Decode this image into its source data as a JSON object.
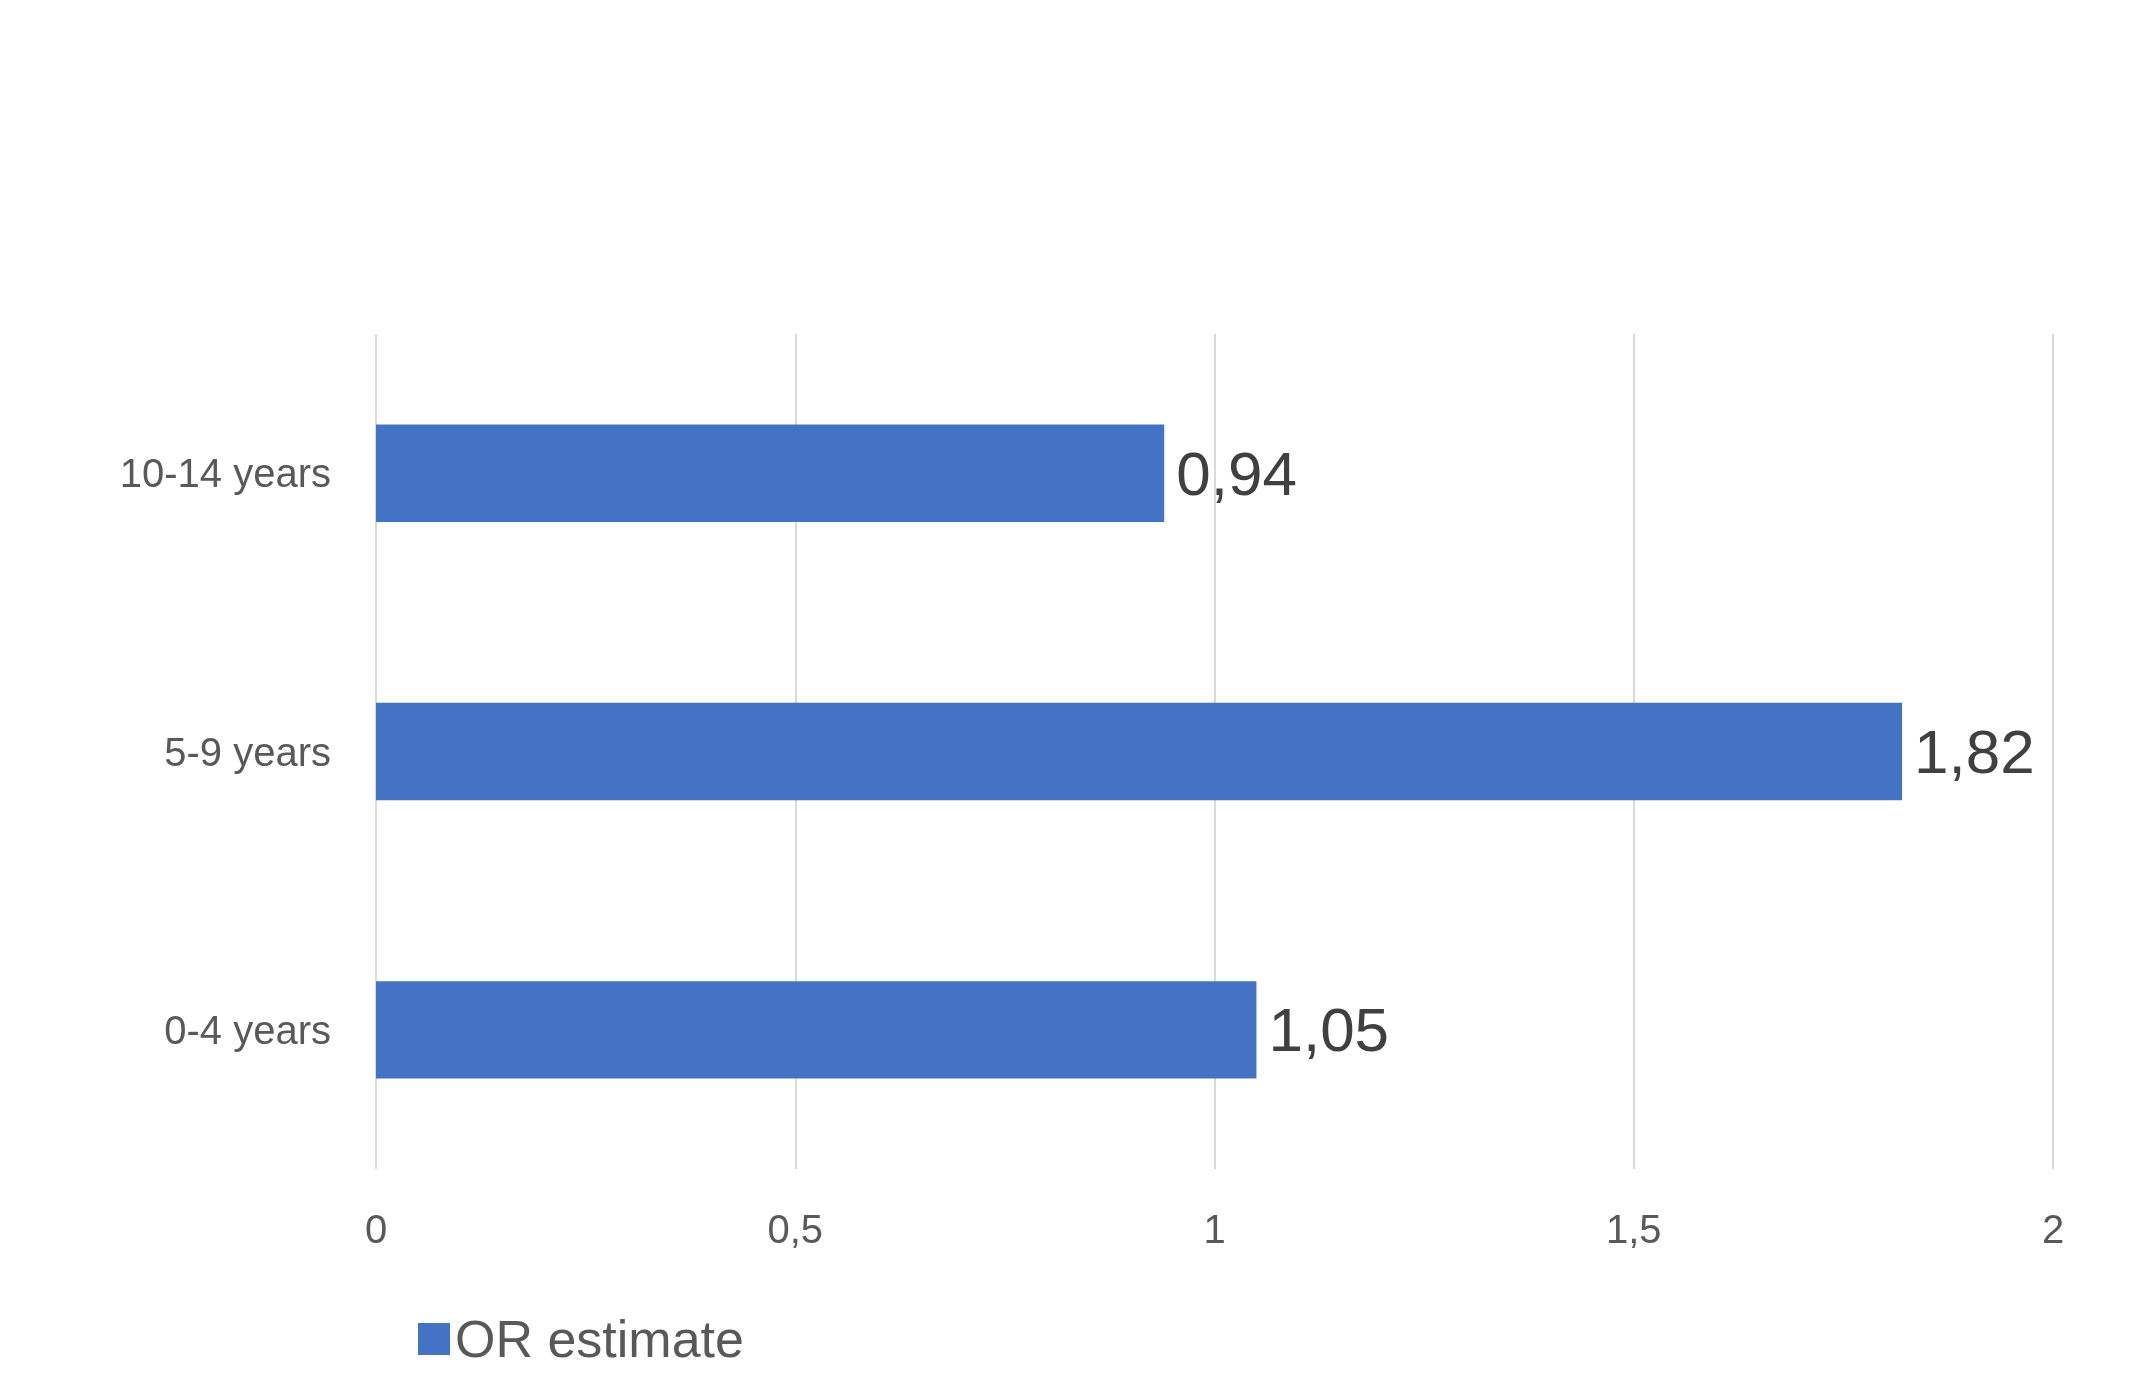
{
  "chart_data": {
    "type": "bar",
    "orientation": "horizontal",
    "categories": [
      "10-14 years",
      "5-9 years",
      "0-4 years"
    ],
    "series": [
      {
        "name": "OR estimate",
        "color": "#4472c4",
        "values": [
          0.94,
          1.82,
          1.05
        ],
        "value_labels": [
          "0,94",
          "1,82",
          "1,05"
        ]
      }
    ],
    "xlim": [
      0,
      2
    ],
    "xticks": [
      0,
      {
        "value": 0.5,
        "label": "0,5"
      },
      1,
      {
        "value": 1.5,
        "label": "1,5"
      },
      2
    ],
    "grid": "x",
    "legend": "bottom left"
  }
}
